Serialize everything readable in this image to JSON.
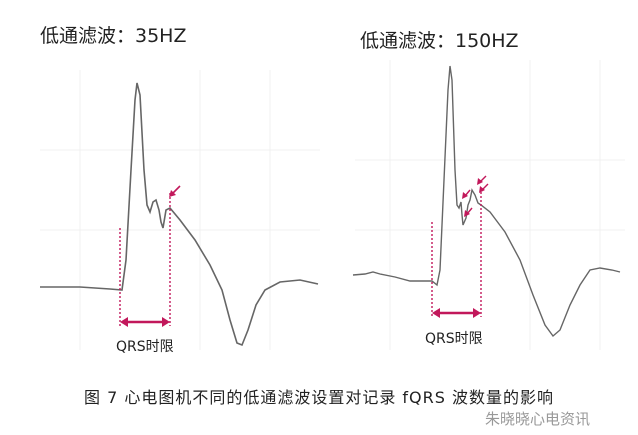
{
  "panels": [
    {
      "title": "低通滤波：35HZ",
      "interval_label": "QRS时限"
    },
    {
      "title": "低通滤波：150HZ",
      "interval_label": "QRS时限"
    }
  ],
  "caption": "图 7  心电图机不同的低通滤波设置对记录 fQRS 波数量的影响",
  "watermark": "朱晓晓心电资讯",
  "colors": {
    "trace": "#666666",
    "marker": "#c2185b",
    "grid": "#f0f0f0"
  }
}
